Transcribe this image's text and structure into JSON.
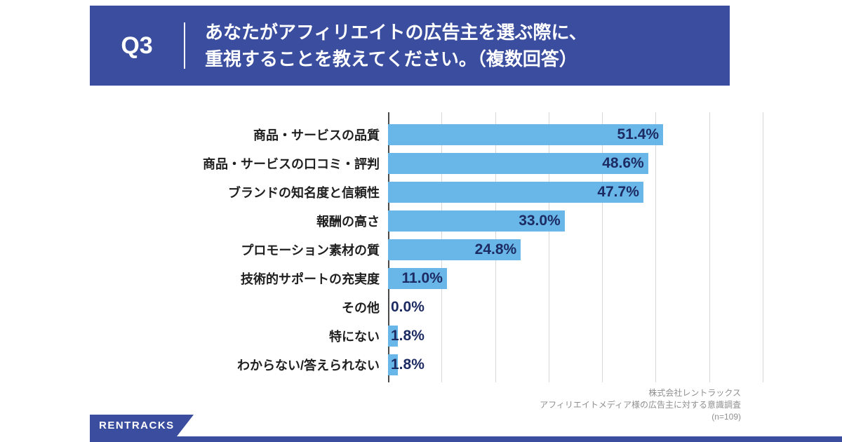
{
  "header": {
    "question_number": "Q3",
    "question_line1": "あなたがアフィリエイトの広告主を選ぶ際に、",
    "question_line2": "重視することを教えてください。（複数回答）"
  },
  "chart_data": {
    "type": "bar",
    "orientation": "horizontal",
    "title": "",
    "categories": [
      "商品・サービスの品質",
      "商品・サービスの口コミ・評判",
      "ブランドの知名度と信頼性",
      "報酬の高さ",
      "プロモーション素材の質",
      "技術的サポートの充実度",
      "その他",
      "特にない",
      "わからない/答えられない"
    ],
    "values": [
      51.4,
      48.6,
      47.7,
      33.0,
      24.8,
      11.0,
      0.0,
      1.8,
      1.8
    ],
    "value_labels": [
      "51.4%",
      "48.6%",
      "47.7%",
      "33.0%",
      "24.8%",
      "11.0%",
      "0.0%",
      "1.8%",
      "1.8%"
    ],
    "xlim": [
      0,
      70
    ],
    "grid_interval": 10,
    "grid": true,
    "legend": false
  },
  "footer": {
    "logo_text": "RENTRACKS",
    "source_lines": [
      "株式会社レントラックス",
      "アフィリエイトメディア様の広告主に対する意識調査",
      "(n=109)"
    ]
  },
  "colors": {
    "brand_navy": "#3A4D9E",
    "bar_blue": "#69B6E8",
    "value_text": "#1D2B63",
    "grid_line": "#D6D6D6"
  }
}
